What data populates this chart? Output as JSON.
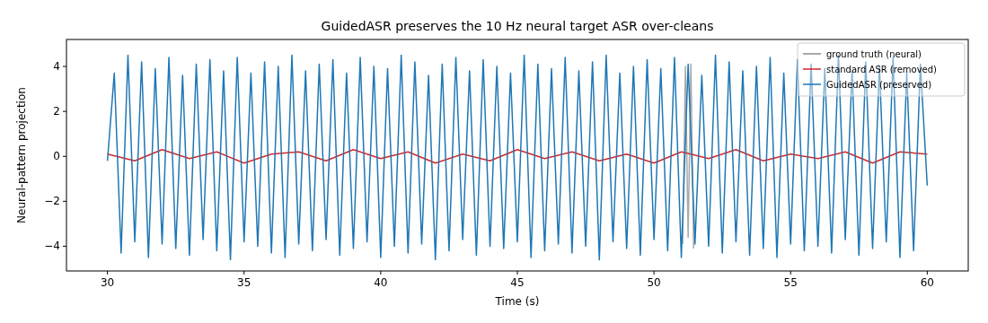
{
  "chart_data": {
    "type": "line",
    "title": "GuidedASR preserves the 10 Hz neural target ASR over-cleans",
    "xlabel": "Time (s)",
    "ylabel": "Neural-pattern projection",
    "xlim": [
      28.5,
      61.5
    ],
    "ylim": [
      -5.1,
      5.2
    ],
    "xticks": [
      30,
      35,
      40,
      45,
      50,
      55,
      60
    ],
    "yticks": [
      -4,
      -2,
      0,
      2,
      4
    ],
    "grid": false,
    "legend": "top right",
    "line_style": "solid",
    "marker": "none",
    "series": [
      {
        "name": "ground truth (neural)",
        "color": "#8c8c8c",
        "x": [
          51.05,
          51.15,
          51.25,
          51.35,
          51.45
        ],
        "values": [
          -3.9,
          4.0,
          -3.6,
          4.1,
          -4.1
        ]
      },
      {
        "name": "standard ASR (removed)",
        "color": "#d62728",
        "x": [
          30,
          31,
          32,
          33,
          34,
          35,
          36,
          37,
          38,
          39,
          40,
          41,
          42,
          43,
          44,
          45,
          46,
          47,
          48,
          49,
          50,
          51,
          52,
          53,
          54,
          55,
          56,
          57,
          58,
          59,
          60
        ],
        "values": [
          0.1,
          -0.2,
          0.3,
          -0.1,
          0.2,
          -0.3,
          0.1,
          0.2,
          -0.2,
          0.3,
          -0.1,
          0.2,
          -0.3,
          0.1,
          -0.2,
          0.3,
          -0.1,
          0.2,
          -0.2,
          0.1,
          -0.3,
          0.2,
          -0.1,
          0.3,
          -0.2,
          0.1,
          -0.1,
          0.2,
          -0.3,
          0.2,
          0.1
        ]
      },
      {
        "name": "GuidedASR (preserved)",
        "color": "#1f77b4",
        "x": [
          30,
          30.25,
          30.5,
          30.75,
          31,
          31.25,
          31.5,
          31.75,
          32,
          32.25,
          32.5,
          32.75,
          33,
          33.25,
          33.5,
          33.75,
          34,
          34.25,
          34.5,
          34.75,
          35,
          35.25,
          35.5,
          35.75,
          36,
          36.25,
          36.5,
          36.75,
          37,
          37.25,
          37.5,
          37.75,
          38,
          38.25,
          38.5,
          38.75,
          39,
          39.25,
          39.5,
          39.75,
          40,
          40.25,
          40.5,
          40.75,
          41,
          41.25,
          41.5,
          41.75,
          42,
          42.25,
          42.5,
          42.75,
          43,
          43.25,
          43.5,
          43.75,
          44,
          44.25,
          44.5,
          44.75,
          45,
          45.25,
          45.5,
          45.75,
          46,
          46.25,
          46.5,
          46.75,
          47,
          47.25,
          47.5,
          47.75,
          48,
          48.25,
          48.5,
          48.75,
          49,
          49.25,
          49.5,
          49.75,
          50,
          50.25,
          50.5,
          50.75,
          51,
          51.25,
          51.5,
          51.75,
          52,
          52.25,
          52.5,
          52.75,
          53,
          53.25,
          53.5,
          53.75,
          54,
          54.25,
          54.5,
          54.75,
          55,
          55.25,
          55.5,
          55.75,
          56,
          56.25,
          56.5,
          56.75,
          57,
          57.25,
          57.5,
          57.75,
          58,
          58.25,
          58.5,
          58.75,
          59,
          59.25,
          59.5,
          59.75,
          60
        ],
        "values": [
          -0.2,
          3.7,
          -4.3,
          4.5,
          -3.8,
          4.2,
          -4.5,
          3.9,
          -3.9,
          4.4,
          -4.1,
          3.6,
          -4.4,
          4.1,
          -3.7,
          4.3,
          -4.2,
          3.8,
          -4.6,
          4.4,
          -3.8,
          3.7,
          -4.0,
          4.2,
          -4.3,
          4.0,
          -4.5,
          4.5,
          -3.9,
          3.8,
          -4.2,
          4.1,
          -3.7,
          4.3,
          -4.4,
          3.7,
          -4.1,
          4.4,
          -3.8,
          4.0,
          -4.5,
          3.9,
          -4.0,
          4.5,
          -4.3,
          4.2,
          -3.9,
          3.6,
          -4.6,
          4.1,
          -4.2,
          4.4,
          -3.7,
          3.8,
          -4.4,
          4.3,
          -4.0,
          4.0,
          -4.1,
          3.7,
          -3.8,
          4.5,
          -4.5,
          4.1,
          -4.2,
          3.9,
          -3.9,
          4.4,
          -4.3,
          3.8,
          -4.0,
          4.2,
          -4.6,
          4.5,
          -3.8,
          3.7,
          -4.1,
          4.0,
          -4.4,
          4.3,
          -3.7,
          3.9,
          -4.2,
          4.4,
          -4.5,
          4.1,
          -3.9,
          3.6,
          -4.0,
          4.5,
          -4.3,
          4.2,
          -3.8,
          3.8,
          -4.4,
          4.0,
          -4.1,
          4.4,
          -4.5,
          3.7,
          -3.9,
          4.3,
          -4.2,
          4.1,
          -4.0,
          3.9,
          -4.3,
          4.5,
          -3.7,
          3.8,
          -4.4,
          4.2,
          -4.1,
          4.0,
          -3.8,
          4.4,
          -4.5,
          3.7,
          -4.2,
          4.1,
          -1.3
        ]
      }
    ]
  }
}
